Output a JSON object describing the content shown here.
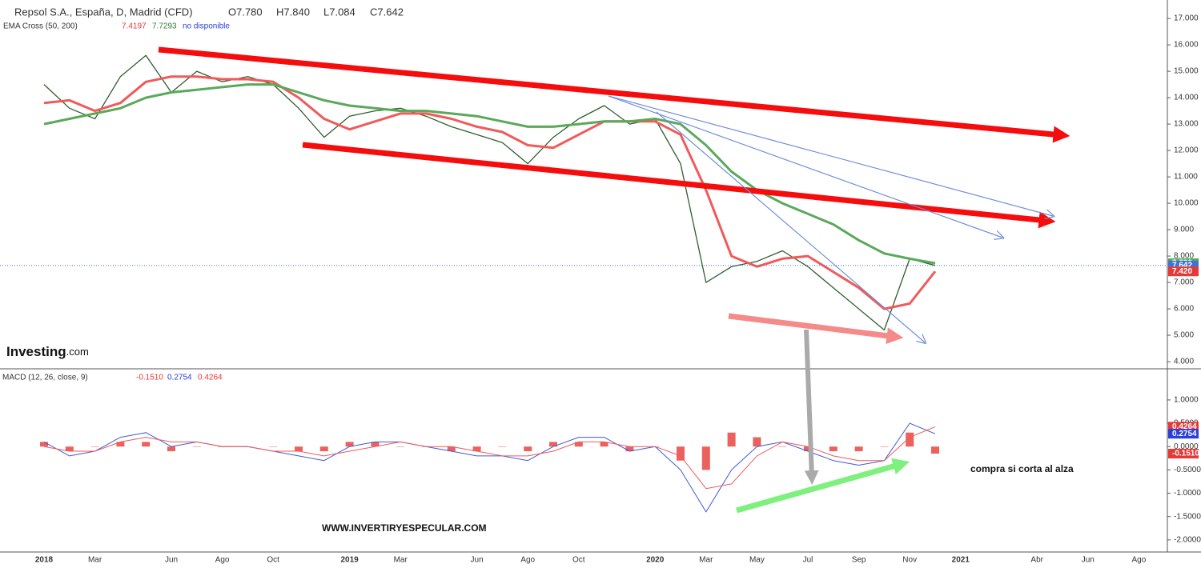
{
  "chart_data": [
    {
      "type": "line",
      "title": "Repsol S.A., España, D, Madrid (CFD)",
      "ohlc": [
        "O7.780",
        "H7.840",
        "L7.084",
        "C7.642"
      ],
      "indicator": "EMA Cross (50, 200)",
      "indicator_values": [
        "7.4197",
        "7.7293"
      ],
      "status": "no disponible",
      "logo": [
        "Investing",
        ".com"
      ],
      "categories": [
        "2018",
        null,
        "Mar",
        null,
        null,
        "Jun",
        null,
        "Ago",
        null,
        "Oct",
        null,
        null,
        "2019",
        null,
        "Mar",
        null,
        null,
        "Jun",
        null,
        "Ago",
        null,
        "Oct",
        null,
        null,
        "2020",
        null,
        "Mar",
        null,
        "May",
        null,
        "Jul",
        null,
        "Sep",
        null,
        "Nov",
        null,
        "2021",
        null,
        null,
        "Abr",
        null,
        "Jun",
        null,
        "Ago",
        null
      ],
      "ylim": [
        3.76,
        17.7
      ],
      "yticks": [
        {
          "value": 17,
          "label": "17.000"
        },
        {
          "value": 16,
          "label": "16.000"
        },
        {
          "value": 15,
          "label": "15.000"
        },
        {
          "value": 14,
          "label": "14.000"
        },
        {
          "value": 13,
          "label": "13.000"
        },
        {
          "value": 12,
          "label": "12.000"
        },
        {
          "value": 11,
          "label": "11.000"
        },
        {
          "value": 10,
          "label": "10.000"
        },
        {
          "value": 9,
          "label": "9.000"
        },
        {
          "value": 8,
          "label": "8.000"
        },
        {
          "value": 7,
          "label": "7.000"
        },
        {
          "value": 6,
          "label": "6.000"
        },
        {
          "value": 5,
          "label": "5.000"
        },
        {
          "value": 4,
          "label": "4.000"
        }
      ],
      "series": [
        {
          "name": "Close",
          "color": "#2e5e2e",
          "width": 1.3,
          "values": [
            14.5,
            13.6,
            13.2,
            14.8,
            15.6,
            14.2,
            15.0,
            14.6,
            14.8,
            14.5,
            13.6,
            12.5,
            13.3,
            13.5,
            13.6,
            13.3,
            12.9,
            12.6,
            12.3,
            11.5,
            12.5,
            13.2,
            13.7,
            13.0,
            13.2,
            11.5,
            7.0,
            7.6,
            7.8,
            8.2,
            7.6,
            6.8,
            6.0,
            5.2,
            7.9,
            7.642,
            null,
            null,
            null,
            null,
            null,
            null,
            null,
            null,
            null
          ]
        },
        {
          "name": "EMA 50",
          "color": "#f05a5a",
          "width": 3,
          "values": [
            13.8,
            13.9,
            13.5,
            13.8,
            14.6,
            14.8,
            14.8,
            14.7,
            14.7,
            14.6,
            14.0,
            13.2,
            12.8,
            13.1,
            13.4,
            13.4,
            13.2,
            12.9,
            12.7,
            12.2,
            12.1,
            12.6,
            13.1,
            13.1,
            13.1,
            12.6,
            10.5,
            8.0,
            7.6,
            7.9,
            8.0,
            7.4,
            6.8,
            6.0,
            6.2,
            7.42,
            null,
            null,
            null,
            null,
            null,
            null,
            null,
            null,
            null
          ]
        },
        {
          "name": "EMA 200",
          "color": "#5ba85b",
          "width": 3,
          "values": [
            13.0,
            13.2,
            13.4,
            13.6,
            14.0,
            14.2,
            14.3,
            14.4,
            14.5,
            14.5,
            14.2,
            13.9,
            13.7,
            13.6,
            13.5,
            13.5,
            13.4,
            13.3,
            13.1,
            12.9,
            12.9,
            13.0,
            13.1,
            13.1,
            13.2,
            13.0,
            12.2,
            11.2,
            10.5,
            10.0,
            9.6,
            9.2,
            8.6,
            8.1,
            7.9,
            7.729,
            null,
            null,
            null,
            null,
            null,
            null,
            null,
            null,
            null
          ]
        }
      ],
      "tags": [
        {
          "value": 7.729,
          "label": "7.729",
          "color": "#4caf50"
        },
        {
          "value": 7.642,
          "label": "7.642",
          "color": "#3f72d6"
        },
        {
          "value": 7.42,
          "label": "7.420",
          "color": "#e53935"
        }
      ]
    },
    {
      "type": "line",
      "title": "MACD (12, 26, close, 9)",
      "header_values": [
        "-0.1510",
        "0.2754",
        "0.4264"
      ],
      "annotations": [
        "compra si corta al alza",
        "WWW.INVERTIRYESPECULAR.COM"
      ],
      "ylim": [
        -2.26,
        1.65
      ],
      "yticks": [
        {
          "value": 1,
          "label": "1.0000"
        },
        {
          "value": 0.5,
          "label": "0.5000"
        },
        {
          "value": 0,
          "label": "0.0000"
        },
        {
          "value": -0.5,
          "label": "-0.5000"
        },
        {
          "value": -1,
          "label": "-1.0000"
        },
        {
          "value": -1.5,
          "label": "-1.5000"
        },
        {
          "value": -2,
          "label": "-2.0000"
        }
      ],
      "series": [
        {
          "name": "Histogram",
          "color": "#e53935",
          "style": "bar",
          "values": [
            0.1,
            -0.1,
            0.0,
            0.1,
            0.1,
            -0.1,
            0.0,
            0.0,
            0.0,
            0.0,
            -0.1,
            -0.1,
            0.1,
            0.1,
            0.0,
            0.0,
            -0.1,
            -0.1,
            0.0,
            -0.1,
            0.1,
            0.1,
            0.1,
            -0.1,
            0.0,
            -0.3,
            -0.5,
            0.3,
            0.2,
            0.0,
            -0.1,
            -0.1,
            -0.1,
            0.0,
            0.3,
            -0.151,
            null,
            null,
            null,
            null,
            null,
            null,
            null,
            null,
            null
          ]
        },
        {
          "name": "MACD",
          "color": "#3f5bd6",
          "width": 1,
          "values": [
            0.1,
            -0.2,
            -0.1,
            0.2,
            0.3,
            0.0,
            0.1,
            0.0,
            0.0,
            -0.1,
            -0.2,
            -0.3,
            0.0,
            0.1,
            0.1,
            0.0,
            -0.1,
            -0.2,
            -0.2,
            -0.3,
            0.0,
            0.2,
            0.2,
            -0.1,
            0.0,
            -0.5,
            -1.4,
            -0.5,
            0.0,
            0.1,
            -0.1,
            -0.3,
            -0.4,
            -0.3,
            0.5,
            0.2754,
            null,
            null,
            null,
            null,
            null,
            null,
            null,
            null,
            null
          ]
        },
        {
          "name": "Signal",
          "color": "#f05a5a",
          "width": 1,
          "values": [
            0.0,
            -0.1,
            -0.1,
            0.1,
            0.2,
            0.1,
            0.1,
            0.0,
            0.0,
            -0.1,
            -0.1,
            -0.2,
            -0.1,
            0.0,
            0.1,
            0.0,
            0.0,
            -0.1,
            -0.2,
            -0.2,
            -0.1,
            0.1,
            0.1,
            0.0,
            0.0,
            -0.2,
            -0.9,
            -0.8,
            -0.2,
            0.1,
            0.0,
            -0.2,
            -0.3,
            -0.3,
            0.2,
            0.4264,
            null,
            null,
            null,
            null,
            null,
            null,
            null,
            null,
            null
          ]
        }
      ],
      "tags": [
        {
          "value": 0.4264,
          "label": "0.4264",
          "color": "#e53935"
        },
        {
          "value": 0.2754,
          "label": "0.2754",
          "color": "#2b3fd6"
        },
        {
          "value": -0.151,
          "label": "-0.1510",
          "color": "#e53935"
        }
      ]
    }
  ]
}
